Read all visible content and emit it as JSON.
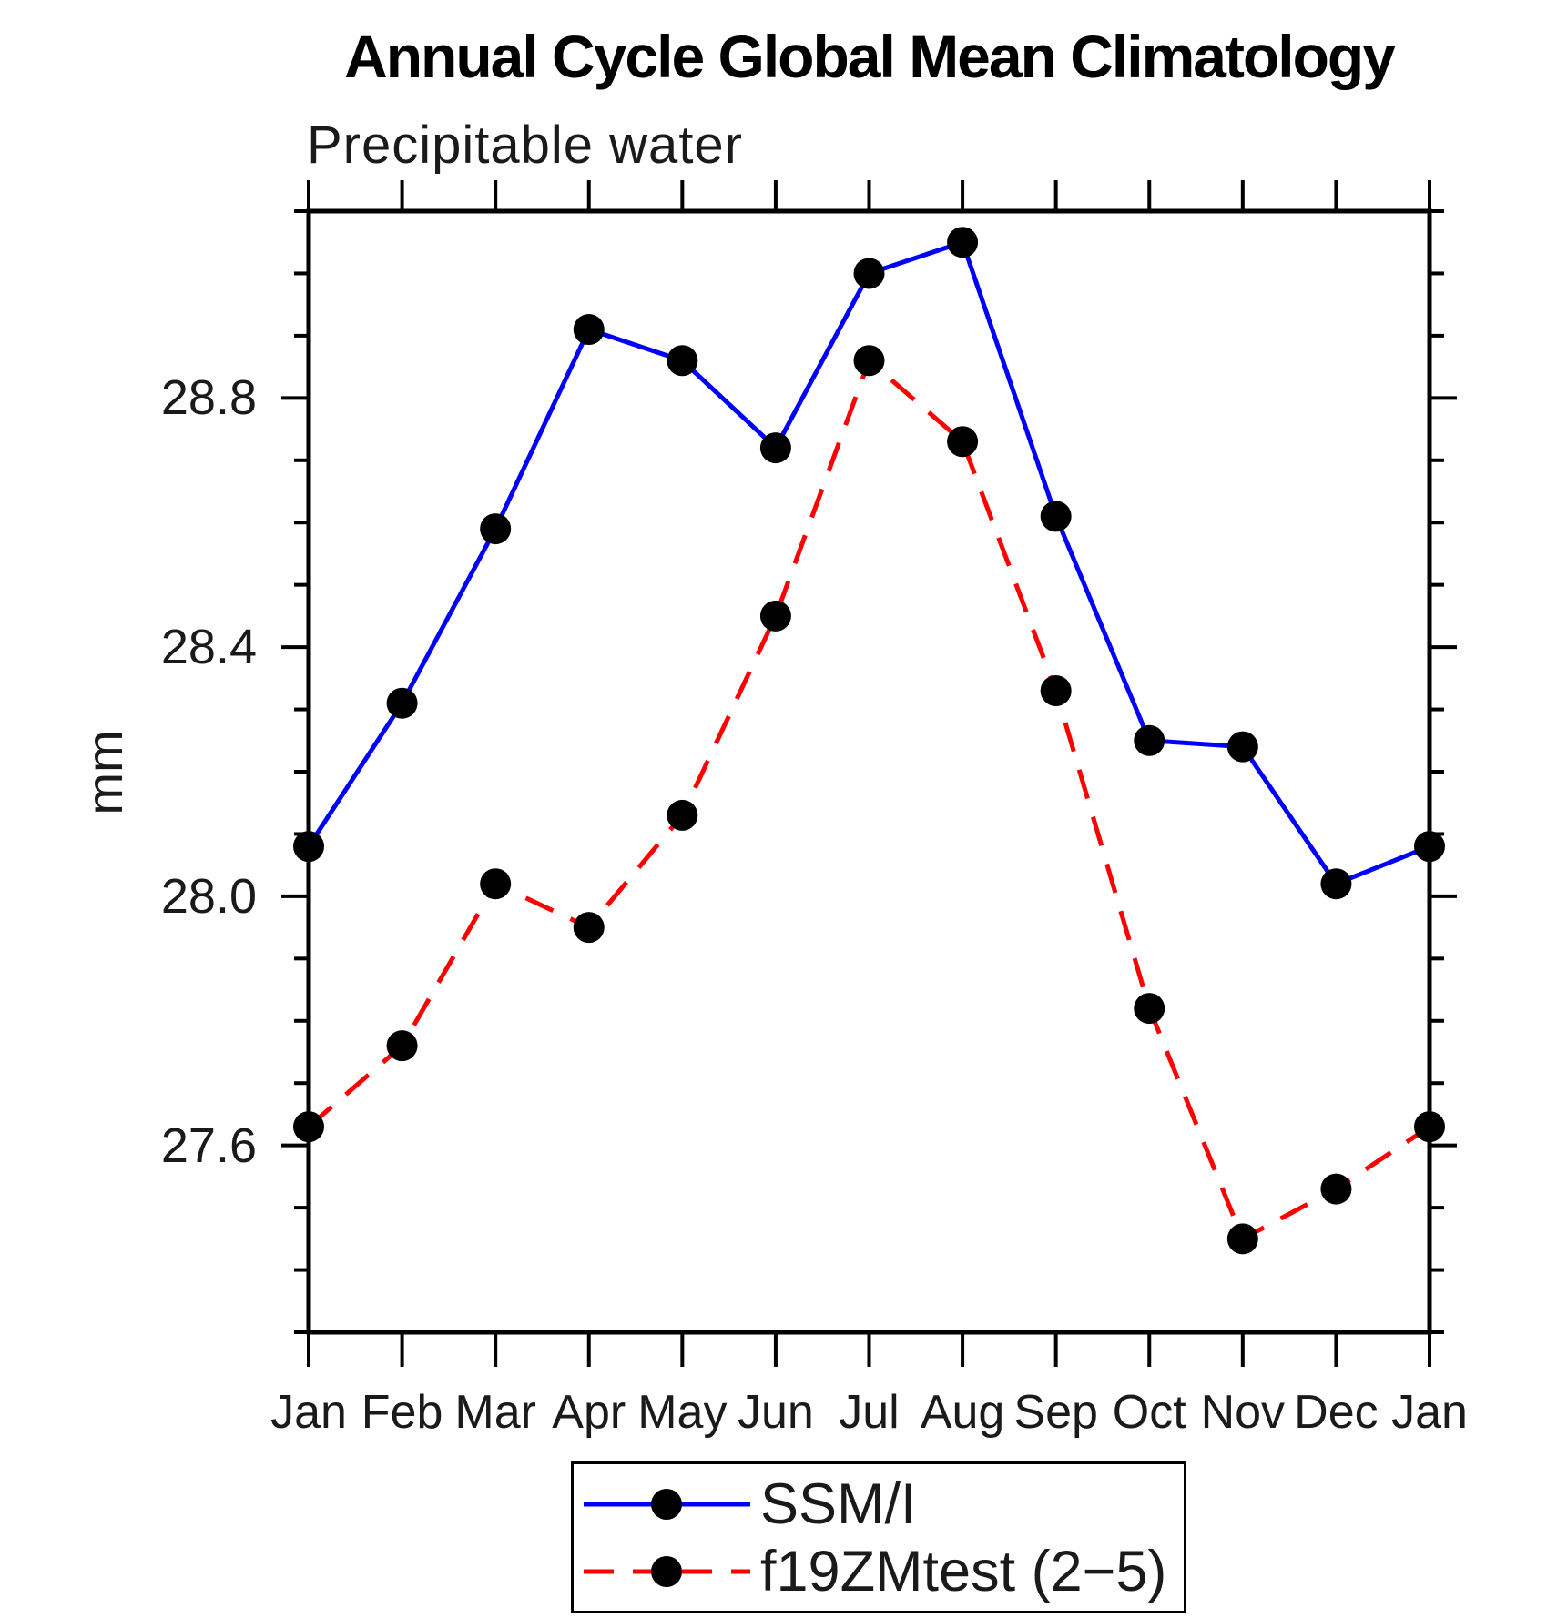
{
  "chart_data": {
    "type": "line",
    "title": "Annual Cycle Global Mean Climatology",
    "subtitle": "Precipitable water",
    "ylabel": "mm",
    "xlabel": "",
    "x_categories": [
      "Jan",
      "Feb",
      "Mar",
      "Apr",
      "May",
      "Jun",
      "Jul",
      "Aug",
      "Sep",
      "Oct",
      "Nov",
      "Dec",
      "Jan"
    ],
    "ylim": [
      27.3,
      29.1
    ],
    "y_major_ticks": [
      27.6,
      28.0,
      28.4,
      28.8
    ],
    "y_minor_step": 0.1,
    "grid": false,
    "legend_position": "bottom-center",
    "series": [
      {
        "name": "SSM/I",
        "line_style": "solid",
        "color": "#0000ff",
        "marker": "circle",
        "marker_color": "#000000",
        "values": [
          28.08,
          28.31,
          28.59,
          28.91,
          28.86,
          28.72,
          29.0,
          29.05,
          28.61,
          28.25,
          28.24,
          28.02,
          28.08
        ]
      },
      {
        "name": "f19ZMtest (2−5)",
        "line_style": "dashed",
        "color": "#ff0000",
        "marker": "circle",
        "marker_color": "#000000",
        "values": [
          27.63,
          27.76,
          28.02,
          27.95,
          28.13,
          28.45,
          28.86,
          28.73,
          28.33,
          27.82,
          27.45,
          27.53,
          27.63
        ]
      }
    ]
  },
  "colors": {
    "axis": "#000000",
    "background": "#ffffff",
    "text": "#1a1a1a"
  }
}
